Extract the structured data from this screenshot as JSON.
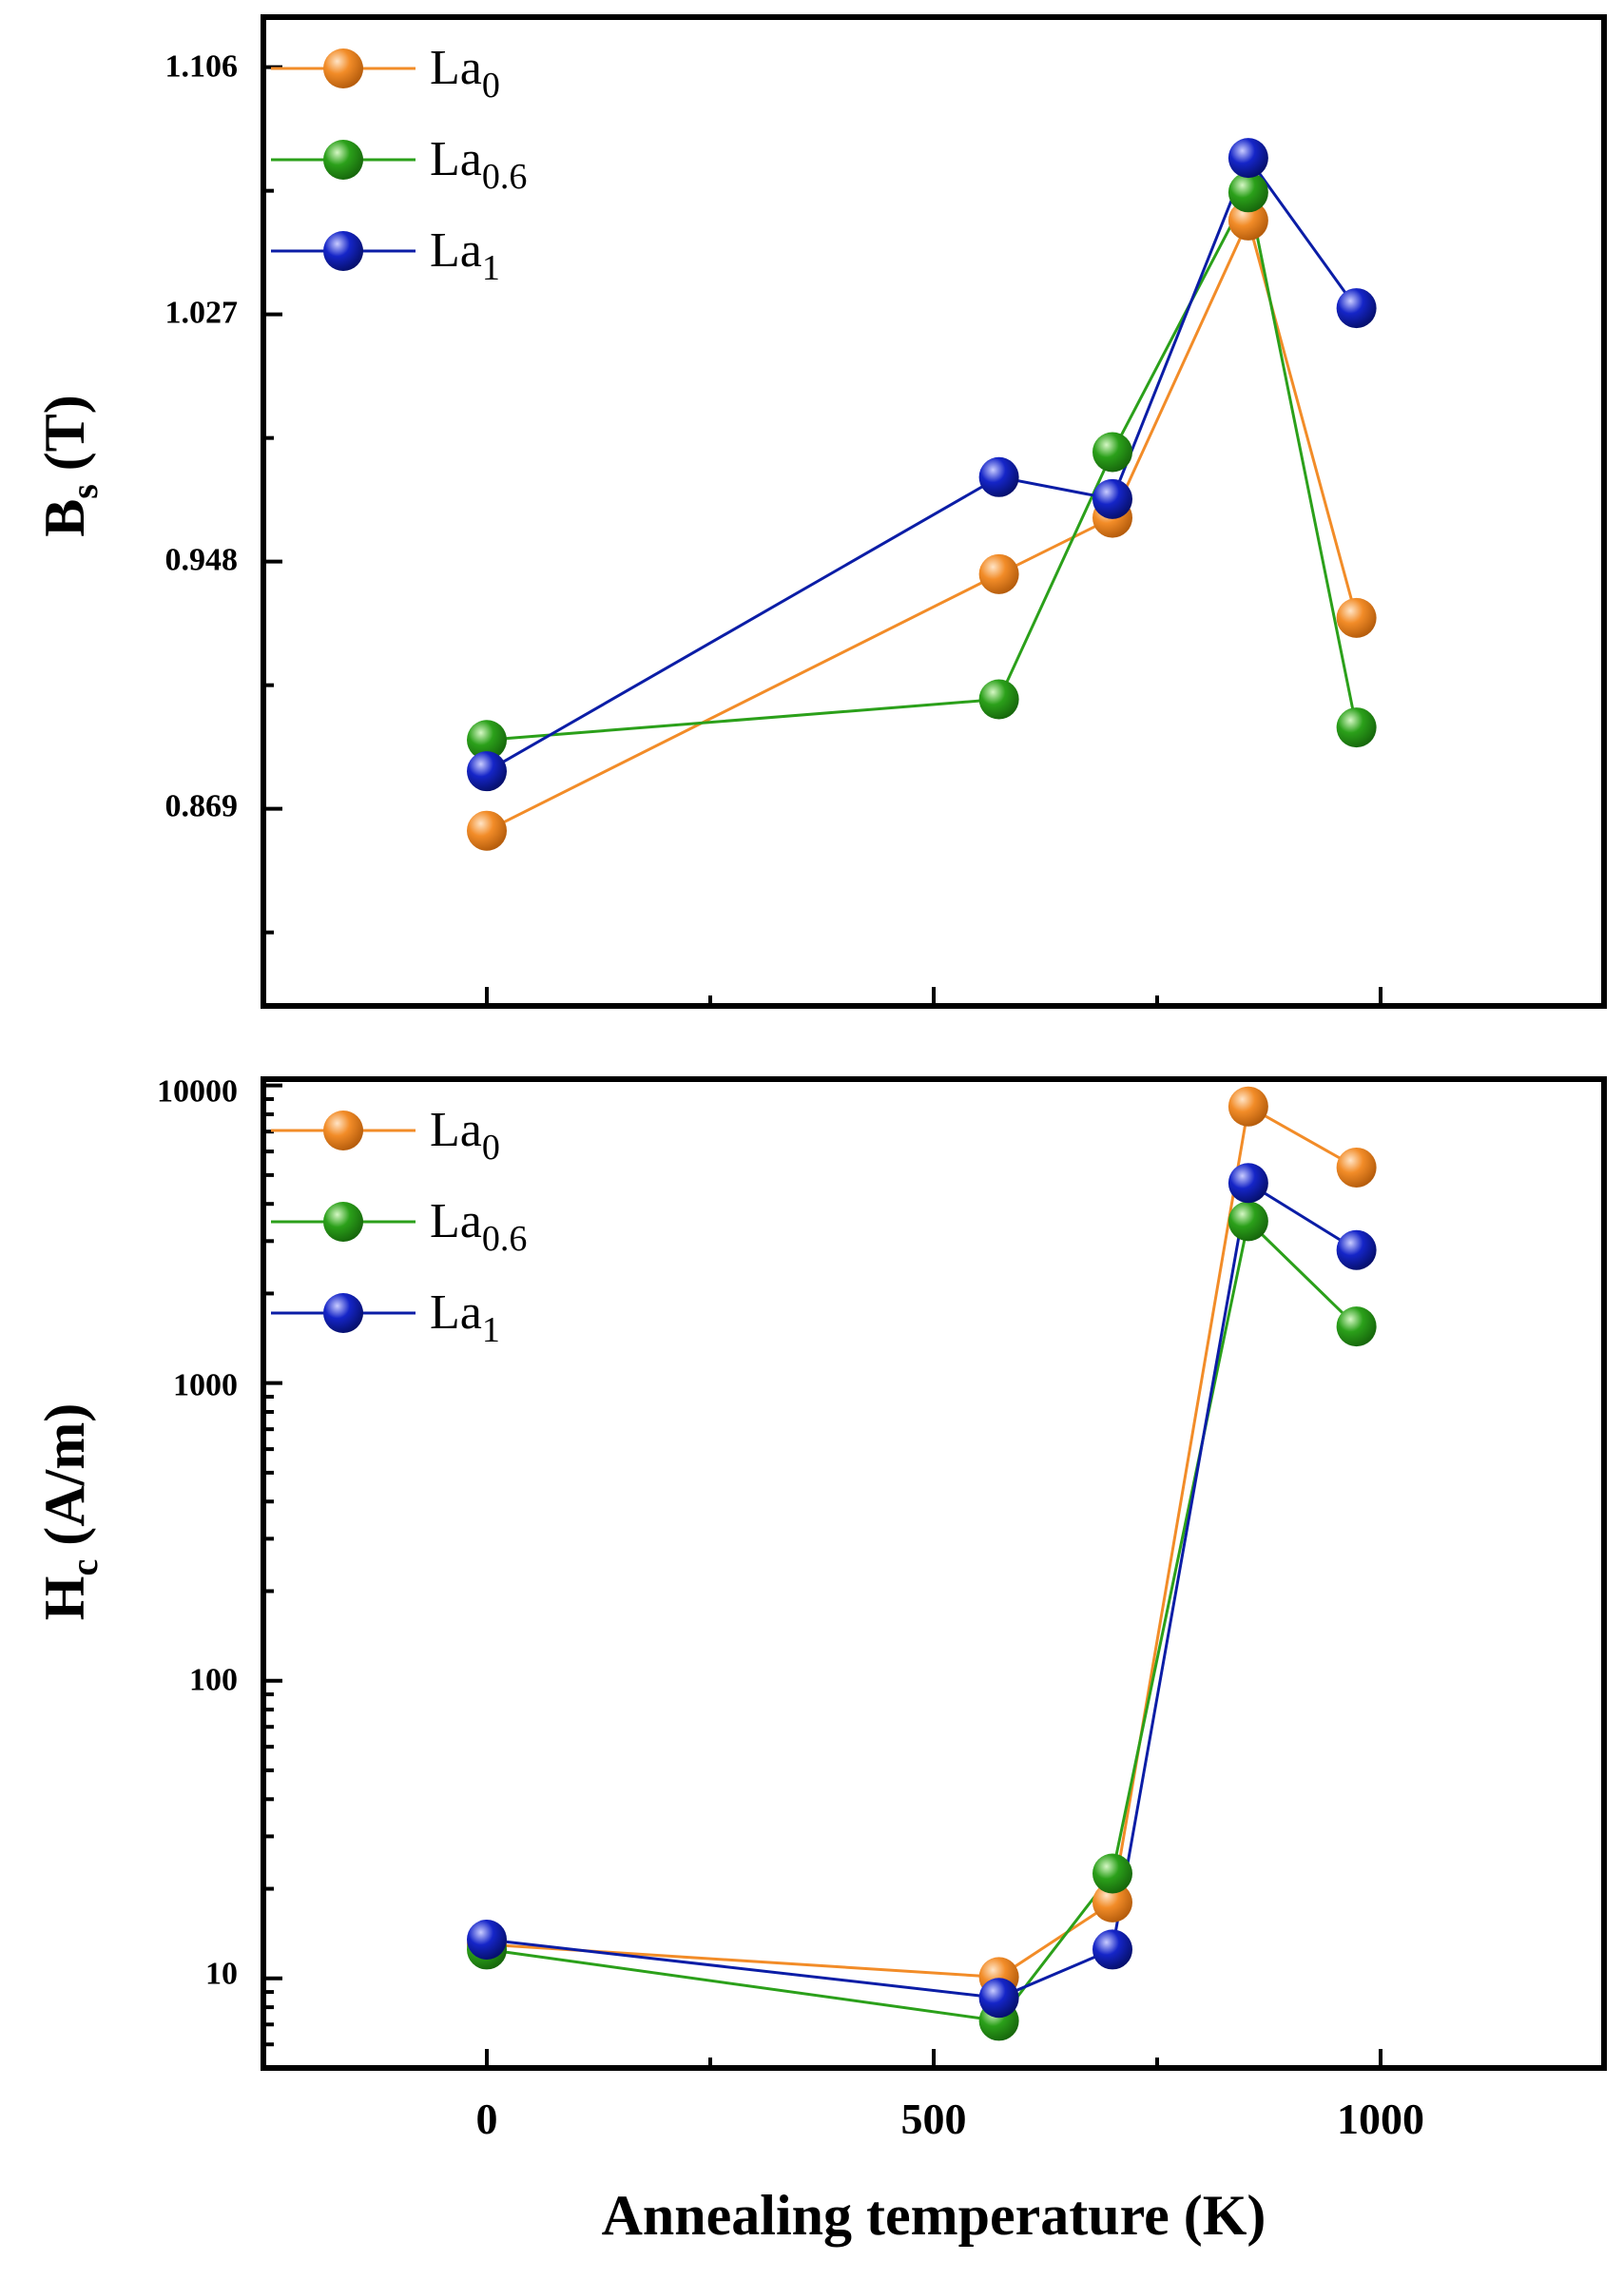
{
  "chart_data": [
    {
      "type": "line",
      "panel": "top",
      "title": "",
      "xlabel": "Annealing temperature (K)",
      "ylabel": {
        "main": "B",
        "sub": "s",
        "unit": "(T)"
      },
      "xlim": [
        -250,
        1250
      ],
      "ylim": [
        0.806,
        1.122
      ],
      "yscale": "linear",
      "x_ticks": [
        0,
        500,
        1000
      ],
      "y_ticks": [
        0.869,
        0.948,
        1.027,
        1.106
      ],
      "y_tick_labels": [
        "0.869",
        "0.948",
        "1.027",
        "1.106"
      ],
      "legend_position": "top-left",
      "series": [
        {
          "name": "La",
          "sub": "0",
          "color": "#F28C28",
          "x": [
            0,
            573,
            700,
            852,
            973
          ],
          "y": [
            0.862,
            0.944,
            0.962,
            1.057,
            0.93
          ]
        },
        {
          "name": "La",
          "sub": "0.6",
          "color": "#2BA01A",
          "x": [
            0,
            573,
            700,
            852,
            973
          ],
          "y": [
            0.891,
            0.904,
            0.983,
            1.066,
            0.895
          ]
        },
        {
          "name": "La",
          "sub": "1",
          "color": "#0B1DA6",
          "x": [
            0,
            573,
            700,
            852,
            973
          ],
          "y": [
            0.881,
            0.975,
            0.968,
            1.077,
            1.029
          ]
        }
      ]
    },
    {
      "type": "line",
      "panel": "bottom",
      "title": "",
      "xlabel": "Annealing temperature (K)",
      "ylabel": {
        "main": "H",
        "sub": "c",
        "unit": "(A/m)"
      },
      "xlim": [
        -250,
        1250
      ],
      "ylim": [
        5.0,
        10500
      ],
      "yscale": "log",
      "x_ticks": [
        0,
        500,
        1000
      ],
      "x_tick_labels": [
        "0",
        "500",
        "1000"
      ],
      "y_ticks": [
        10,
        100,
        1000,
        10000
      ],
      "y_tick_labels": [
        "10",
        "100",
        "1000",
        "10000"
      ],
      "legend_position": "top-left",
      "series": [
        {
          "name": "La",
          "sub": "0",
          "color": "#F28C28",
          "x": [
            0,
            573,
            700,
            852,
            973
          ],
          "y": [
            13.0,
            10.1,
            18.0,
            8500,
            5300
          ]
        },
        {
          "name": "La",
          "sub": "0.6",
          "color": "#2BA01A",
          "x": [
            0,
            573,
            700,
            852,
            973
          ],
          "y": [
            12.5,
            7.2,
            22.5,
            3500,
            1550
          ]
        },
        {
          "name": "La",
          "sub": "1",
          "color": "#0B1DA6",
          "x": [
            0,
            573,
            700,
            852,
            973
          ],
          "y": [
            13.5,
            8.6,
            12.5,
            4700,
            2800
          ]
        }
      ]
    }
  ]
}
